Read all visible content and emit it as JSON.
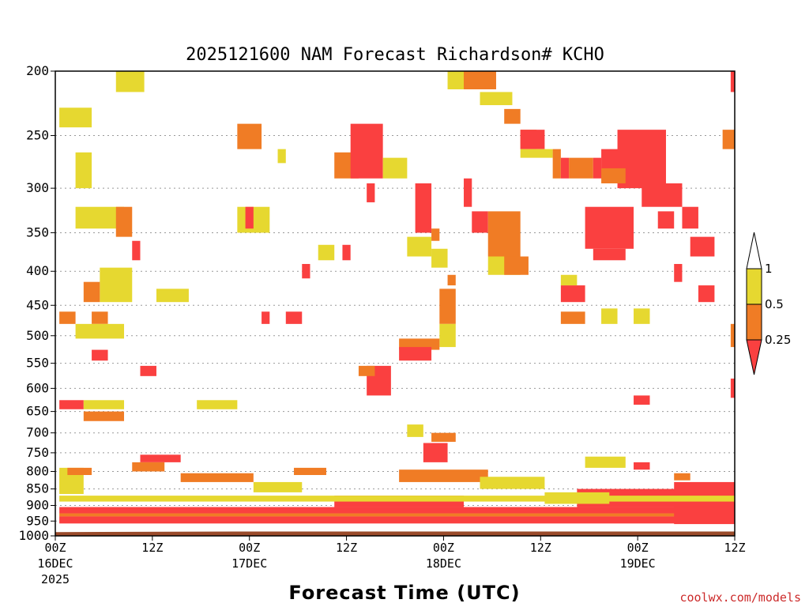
{
  "chart_data": {
    "type": "heatmap",
    "title": "2025121600 NAM Forecast Richardson# KCHO",
    "xlabel": "Forecast Time (UTC)",
    "ylabel": "",
    "y_scale": "pressure (log)",
    "ylim": [
      1000,
      200
    ],
    "y_ticks": [
      200,
      250,
      300,
      350,
      400,
      450,
      500,
      550,
      600,
      650,
      700,
      750,
      800,
      850,
      900,
      950,
      1000
    ],
    "xlim": [
      0,
      84
    ],
    "x_ticks": [
      {
        "hour": 0,
        "label": "00Z",
        "sub": "16DEC",
        "sub2": "2025"
      },
      {
        "hour": 12,
        "label": "12Z",
        "sub": "",
        "sub2": ""
      },
      {
        "hour": 24,
        "label": "00Z",
        "sub": "17DEC",
        "sub2": ""
      },
      {
        "hour": 36,
        "label": "12Z",
        "sub": "",
        "sub2": ""
      },
      {
        "hour": 48,
        "label": "00Z",
        "sub": "18DEC",
        "sub2": ""
      },
      {
        "hour": 60,
        "label": "12Z",
        "sub": "",
        "sub2": ""
      },
      {
        "hour": 72,
        "label": "00Z",
        "sub": "19DEC",
        "sub2": ""
      },
      {
        "hour": 84,
        "label": "12Z",
        "sub": "",
        "sub2": ""
      }
    ],
    "legend": {
      "placement": "right",
      "levels": [
        "1",
        "0.5",
        "0.25"
      ],
      "categories": [
        {
          "range": "> 1",
          "color": "#ffffff"
        },
        {
          "range": "0.5 - 1",
          "color": "#e6d830"
        },
        {
          "range": "0.25 - 0.5",
          "color": "#f07c25"
        },
        {
          "range": "< 0.25",
          "color": "#fa4040"
        }
      ]
    },
    "colors": {
      "low": "#fa4040",
      "mid": "#f07c25",
      "high": "#e6d830",
      "ground": "#9a4b2b",
      "grid": "#999999"
    },
    "regions": [
      {
        "c": "high",
        "h0": 7.5,
        "h1": 11,
        "p0": 200,
        "p1": 215
      },
      {
        "c": "high",
        "h0": 0.5,
        "h1": 4.5,
        "p0": 227,
        "p1": 243
      },
      {
        "c": "high",
        "h0": 2.5,
        "h1": 4.5,
        "p0": 265,
        "p1": 300
      },
      {
        "c": "high",
        "h0": 2.5,
        "h1": 8.5,
        "p0": 320,
        "p1": 345
      },
      {
        "c": "mid",
        "h0": 7.5,
        "h1": 9.5,
        "p0": 320,
        "p1": 355
      },
      {
        "c": "low",
        "h0": 9.5,
        "h1": 10.5,
        "p0": 360,
        "p1": 385
      },
      {
        "c": "high",
        "h0": 5.5,
        "h1": 9.5,
        "p0": 395,
        "p1": 445
      },
      {
        "c": "mid",
        "h0": 3.5,
        "h1": 5.5,
        "p0": 415,
        "p1": 445
      },
      {
        "c": "mid",
        "h0": 0.5,
        "h1": 2.5,
        "p0": 460,
        "p1": 480
      },
      {
        "c": "mid",
        "h0": 4.5,
        "h1": 6.5,
        "p0": 460,
        "p1": 480
      },
      {
        "c": "high",
        "h0": 2.5,
        "h1": 8.5,
        "p0": 480,
        "p1": 505
      },
      {
        "c": "low",
        "h0": 4.5,
        "h1": 6.5,
        "p0": 525,
        "p1": 545
      },
      {
        "c": "low",
        "h0": 10.5,
        "h1": 12.5,
        "p0": 555,
        "p1": 575
      },
      {
        "c": "high",
        "h0": 12.5,
        "h1": 16.5,
        "p0": 425,
        "p1": 445
      },
      {
        "c": "low",
        "h0": 0.5,
        "h1": 3.5,
        "p0": 625,
        "p1": 645
      },
      {
        "c": "high",
        "h0": 3.5,
        "h1": 8.5,
        "p0": 625,
        "p1": 645
      },
      {
        "c": "mid",
        "h0": 3.5,
        "h1": 8.5,
        "p0": 650,
        "p1": 672
      },
      {
        "c": "high",
        "h0": 17.5,
        "h1": 22.5,
        "p0": 625,
        "p1": 645
      },
      {
        "c": "mid",
        "h0": 22.5,
        "h1": 25.5,
        "p0": 240,
        "p1": 262
      },
      {
        "c": "high",
        "h0": 22.5,
        "h1": 26.5,
        "p0": 320,
        "p1": 350
      },
      {
        "c": "low",
        "h0": 23.5,
        "h1": 24.5,
        "p0": 320,
        "p1": 345
      },
      {
        "c": "high",
        "h0": 27.5,
        "h1": 28.5,
        "p0": 262,
        "p1": 275
      },
      {
        "c": "low",
        "h0": 30.5,
        "h1": 31.5,
        "p0": 390,
        "p1": 410
      },
      {
        "c": "low",
        "h0": 28.5,
        "h1": 30.5,
        "p0": 460,
        "p1": 480
      },
      {
        "c": "low",
        "h0": 25.5,
        "h1": 26.5,
        "p0": 460,
        "p1": 480
      },
      {
        "c": "high",
        "h0": 32.5,
        "h1": 34.5,
        "p0": 365,
        "p1": 385
      },
      {
        "c": "low",
        "h0": 35.5,
        "h1": 36.5,
        "p0": 365,
        "p1": 385
      },
      {
        "c": "mid",
        "h0": 34.5,
        "h1": 37.5,
        "p0": 265,
        "p1": 290
      },
      {
        "c": "low",
        "h0": 36.5,
        "h1": 40.5,
        "p0": 240,
        "p1": 290
      },
      {
        "c": "high",
        "h0": 40.5,
        "h1": 43.5,
        "p0": 270,
        "p1": 290
      },
      {
        "c": "low",
        "h0": 38.5,
        "h1": 39.5,
        "p0": 295,
        "p1": 315
      },
      {
        "c": "low",
        "h0": 44.5,
        "h1": 46.5,
        "p0": 295,
        "p1": 350
      },
      {
        "c": "high",
        "h0": 43.5,
        "h1": 46.5,
        "p0": 355,
        "p1": 380
      },
      {
        "c": "mid",
        "h0": 46.5,
        "h1": 47.5,
        "p0": 345,
        "p1": 360
      },
      {
        "c": "high",
        "h0": 46.5,
        "h1": 48.5,
        "p0": 370,
        "p1": 395
      },
      {
        "c": "mid",
        "h0": 47.5,
        "h1": 49.5,
        "p0": 425,
        "p1": 480
      },
      {
        "c": "high",
        "h0": 47.5,
        "h1": 49.5,
        "p0": 480,
        "p1": 520
      },
      {
        "c": "mid",
        "h0": 42.5,
        "h1": 47.5,
        "p0": 505,
        "p1": 525
      },
      {
        "c": "low",
        "h0": 42.5,
        "h1": 46.5,
        "p0": 520,
        "p1": 545
      },
      {
        "c": "low",
        "h0": 38.5,
        "h1": 41.5,
        "p0": 555,
        "p1": 615
      },
      {
        "c": "mid",
        "h0": 37.5,
        "h1": 39.5,
        "p0": 555,
        "p1": 575
      },
      {
        "c": "low",
        "h0": 45.5,
        "h1": 48.5,
        "p0": 725,
        "p1": 775
      },
      {
        "c": "mid",
        "h0": 46.5,
        "h1": 49.5,
        "p0": 700,
        "p1": 722
      },
      {
        "c": "high",
        "h0": 43.5,
        "h1": 45.5,
        "p0": 680,
        "p1": 710
      },
      {
        "c": "high",
        "h0": 48.5,
        "h1": 51.5,
        "p0": 200,
        "p1": 213
      },
      {
        "c": "mid",
        "h0": 50.5,
        "h1": 54.5,
        "p0": 200,
        "p1": 213
      },
      {
        "c": "high",
        "h0": 52.5,
        "h1": 56.5,
        "p0": 215,
        "p1": 225
      },
      {
        "c": "mid",
        "h0": 55.5,
        "h1": 57.5,
        "p0": 228,
        "p1": 240
      },
      {
        "c": "low",
        "h0": 50.5,
        "h1": 51.5,
        "p0": 290,
        "p1": 320
      },
      {
        "c": "low",
        "h0": 51.5,
        "h1": 53.5,
        "p0": 325,
        "p1": 350
      },
      {
        "c": "mid",
        "h0": 53.5,
        "h1": 57.5,
        "p0": 325,
        "p1": 380
      },
      {
        "c": "high",
        "h0": 53.5,
        "h1": 57.5,
        "p0": 380,
        "p1": 405
      },
      {
        "c": "mid",
        "h0": 55.5,
        "h1": 58.5,
        "p0": 380,
        "p1": 405
      },
      {
        "c": "mid",
        "h0": 48.5,
        "h1": 49.5,
        "p0": 405,
        "p1": 420
      },
      {
        "c": "mid",
        "h0": 57.5,
        "h1": 59.5,
        "p0": 245,
        "p1": 262
      },
      {
        "c": "low",
        "h0": 57.5,
        "h1": 60.5,
        "p0": 245,
        "p1": 262
      },
      {
        "c": "high",
        "h0": 57.5,
        "h1": 61.5,
        "p0": 262,
        "p1": 270
      },
      {
        "c": "mid",
        "h0": 61.5,
        "h1": 62.5,
        "p0": 262,
        "p1": 290
      },
      {
        "c": "low",
        "h0": 62.5,
        "h1": 63.5,
        "p0": 270,
        "p1": 290
      },
      {
        "c": "mid",
        "h0": 63.5,
        "h1": 66.5,
        "p0": 270,
        "p1": 290
      },
      {
        "c": "low",
        "h0": 66.5,
        "h1": 67.5,
        "p0": 270,
        "p1": 290
      },
      {
        "c": "low",
        "h0": 67.5,
        "h1": 70.5,
        "p0": 262,
        "p1": 290
      },
      {
        "c": "low",
        "h0": 69.5,
        "h1": 75.5,
        "p0": 245,
        "p1": 300
      },
      {
        "c": "low",
        "h0": 72.5,
        "h1": 77.5,
        "p0": 295,
        "p1": 320
      },
      {
        "c": "low",
        "h0": 65.5,
        "h1": 71.5,
        "p0": 320,
        "p1": 370
      },
      {
        "c": "low",
        "h0": 66.5,
        "h1": 70.5,
        "p0": 370,
        "p1": 385
      },
      {
        "c": "mid",
        "h0": 67.5,
        "h1": 70.5,
        "p0": 280,
        "p1": 295
      },
      {
        "c": "low",
        "h0": 74.5,
        "h1": 76.5,
        "p0": 325,
        "p1": 345
      },
      {
        "c": "low",
        "h0": 77.5,
        "h1": 79.5,
        "p0": 320,
        "p1": 345
      },
      {
        "c": "low",
        "h0": 78.5,
        "h1": 81.5,
        "p0": 355,
        "p1": 380
      },
      {
        "c": "low",
        "h0": 76.5,
        "h1": 77.5,
        "p0": 390,
        "p1": 415
      },
      {
        "c": "low",
        "h0": 62.5,
        "h1": 65.5,
        "p0": 420,
        "p1": 445
      },
      {
        "c": "mid",
        "h0": 62.5,
        "h1": 65.5,
        "p0": 460,
        "p1": 480
      },
      {
        "c": "high",
        "h0": 67.5,
        "h1": 69.5,
        "p0": 455,
        "p1": 480
      },
      {
        "c": "high",
        "h0": 71.5,
        "h1": 73.5,
        "p0": 455,
        "p1": 480
      },
      {
        "c": "low",
        "h0": 79.5,
        "h1": 81.5,
        "p0": 420,
        "p1": 445
      },
      {
        "c": "high",
        "h0": 62.5,
        "h1": 64.5,
        "p0": 405,
        "p1": 420
      },
      {
        "c": "low",
        "h0": 71.5,
        "h1": 73.5,
        "p0": 615,
        "p1": 635
      },
      {
        "c": "high",
        "h0": 65.5,
        "h1": 70.5,
        "p0": 760,
        "p1": 790
      },
      {
        "c": "low",
        "h0": 71.5,
        "h1": 73.5,
        "p0": 775,
        "p1": 795
      },
      {
        "c": "mid",
        "h0": 76.5,
        "h1": 78.5,
        "p0": 805,
        "p1": 825
      },
      {
        "c": "low",
        "h0": 83.5,
        "h1": 84,
        "p0": 200,
        "p1": 215
      },
      {
        "c": "mid",
        "h0": 82.5,
        "h1": 84,
        "p0": 245,
        "p1": 262
      },
      {
        "c": "low",
        "h0": 83.5,
        "h1": 84,
        "p0": 580,
        "p1": 620
      },
      {
        "c": "mid",
        "h0": 83.5,
        "h1": 84,
        "p0": 480,
        "p1": 520
      },
      {
        "c": "high",
        "h0": 0.5,
        "h1": 3.5,
        "p0": 790,
        "p1": 865
      },
      {
        "c": "mid",
        "h0": 1.5,
        "h1": 4.5,
        "p0": 790,
        "p1": 810
      },
      {
        "c": "low",
        "h0": 10.5,
        "h1": 15.5,
        "p0": 755,
        "p1": 775
      },
      {
        "c": "mid",
        "h0": 9.5,
        "h1": 13.5,
        "p0": 775,
        "p1": 800
      },
      {
        "c": "low",
        "h0": 0.5,
        "h1": 84,
        "p0": 905,
        "p1": 925
      },
      {
        "c": "mid",
        "h0": 0.5,
        "h1": 84,
        "p0": 925,
        "p1": 935
      },
      {
        "c": "low",
        "h0": 0.5,
        "h1": 84,
        "p0": 935,
        "p1": 958
      },
      {
        "c": "low",
        "h0": 34.5,
        "h1": 50.5,
        "p0": 870,
        "p1": 905
      },
      {
        "c": "low",
        "h0": 64.5,
        "h1": 84,
        "p0": 850,
        "p1": 905
      },
      {
        "c": "low",
        "h0": 76.5,
        "h1": 84,
        "p0": 830,
        "p1": 960
      },
      {
        "c": "high",
        "h0": 0.5,
        "h1": 84,
        "p0": 870,
        "p1": 888
      },
      {
        "c": "mid",
        "h0": 42.5,
        "h1": 53.5,
        "p0": 795,
        "p1": 830
      },
      {
        "c": "high",
        "h0": 52.5,
        "h1": 60.5,
        "p0": 815,
        "p1": 850
      },
      {
        "c": "high",
        "h0": 60.5,
        "h1": 68.5,
        "p0": 860,
        "p1": 895
      },
      {
        "c": "mid",
        "h0": 15.5,
        "h1": 24.5,
        "p0": 805,
        "p1": 830
      },
      {
        "c": "high",
        "h0": 24.5,
        "h1": 30.5,
        "p0": 830,
        "p1": 860
      },
      {
        "c": "mid",
        "h0": 29.5,
        "h1": 33.5,
        "p0": 790,
        "p1": 810
      }
    ]
  },
  "credit": "coolwx.com/models"
}
